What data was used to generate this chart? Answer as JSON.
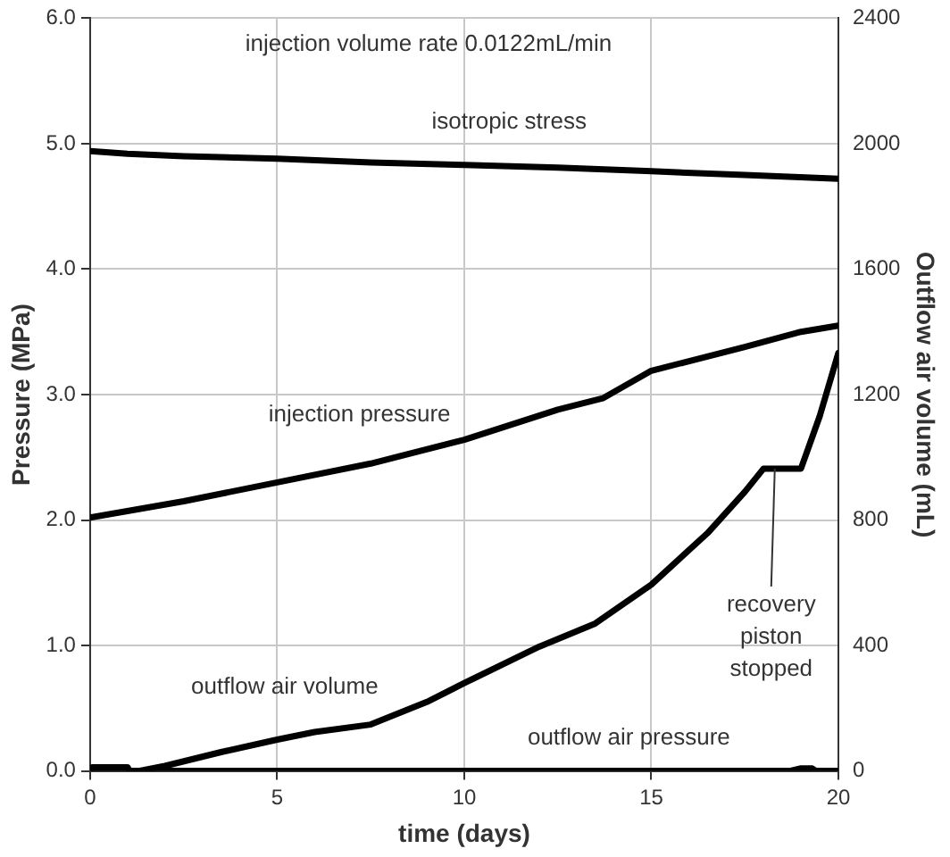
{
  "chart_data": {
    "type": "line",
    "xlabel": "time (days)",
    "ylabel": "Pressure (MPa)",
    "y2label": "Outflow air volume (mL)",
    "xlim": [
      0,
      20
    ],
    "xticks": [
      0,
      5,
      10,
      15,
      20
    ],
    "ylim": [
      0,
      6
    ],
    "yticks": [
      {
        "value": 0,
        "label": "0.0"
      },
      {
        "value": 1,
        "label": "1.0"
      },
      {
        "value": 2,
        "label": "2.0"
      },
      {
        "value": 3,
        "label": "3.0"
      },
      {
        "value": 4,
        "label": "4.0"
      },
      {
        "value": 5,
        "label": "5.0"
      },
      {
        "value": 6,
        "label": "6.0"
      }
    ],
    "y2lim": [
      0,
      2400
    ],
    "y2ticks": [
      0,
      400,
      800,
      1200,
      1600,
      2000,
      2400
    ],
    "grid": true,
    "legend": false,
    "marker": "none",
    "line_style": "solid",
    "annotations": [
      "injection volume rate 0.0122mL/min",
      {
        "text": "recovery piston stopped",
        "x": 18.3,
        "y": 2.41
      }
    ],
    "series": [
      {
        "name": "isotropic stress",
        "color": "#000000",
        "x": [
          0,
          1,
          2.5,
          5,
          7.5,
          10,
          12.5,
          15,
          17.5,
          20
        ],
        "values": [
          4.94,
          4.92,
          4.9,
          4.88,
          4.85,
          4.83,
          4.81,
          4.78,
          4.75,
          4.72
        ]
      },
      {
        "name": "injection pressure",
        "color": "#000000",
        "x": [
          0,
          2.5,
          5,
          7.5,
          10,
          12.5,
          13.7,
          15,
          17.5,
          19,
          20
        ],
        "values": [
          2.02,
          2.15,
          2.3,
          2.45,
          2.64,
          2.88,
          2.97,
          3.19,
          3.38,
          3.5,
          3.55
        ]
      },
      {
        "name": "outflow air volume",
        "color": "#000000",
        "axis": "y2",
        "x": [
          0,
          0.05,
          1,
          1.05,
          1.3,
          2,
          3.5,
          5,
          6,
          7.5,
          9,
          10,
          12,
          13.5,
          15,
          16.5,
          17.5,
          18,
          19,
          19.5,
          20
        ],
        "values": [
          0,
          12,
          12,
          0,
          0,
          16,
          60,
          100,
          124,
          148,
          220,
          280,
          396,
          470,
          594,
          758,
          890,
          964,
          964,
          1131,
          1333
        ]
      },
      {
        "name": "outflow air pressure",
        "color": "#000000",
        "x": [
          0,
          5,
          10,
          15,
          18.7,
          19,
          19.3,
          19.4,
          20
        ],
        "values": [
          0,
          0,
          0,
          0,
          0,
          0.02,
          0.02,
          0,
          0
        ]
      }
    ]
  }
}
